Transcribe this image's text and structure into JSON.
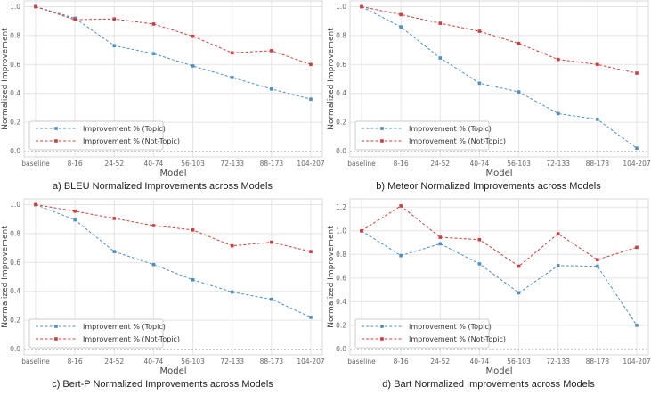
{
  "figure": {
    "background": "#ffffff",
    "grid_color": "#e4e4e4",
    "spine_color": "#d9d9d9",
    "tick_color": "#666666",
    "label_color": "#444444",
    "title_color": "#1f1f1f",
    "zero_line_color": "#c8c8c8",
    "legend_border_color": "#cccccc",
    "topic_color": "#4a8fc7",
    "not_topic_color": "#d63b3b"
  },
  "chart_data": [
    {
      "type": "line",
      "title": "a) BLEU Normalized Improvements across Models",
      "xlabel": "Model",
      "ylabel": "Normalized Improvement",
      "categories": [
        "baseline",
        "8-16",
        "24-52",
        "40-74",
        "56-103",
        "72-133",
        "88-173",
        "104-207"
      ],
      "ylim": [
        -0.04,
        1.04
      ],
      "yticks": [
        0.0,
        0.2,
        0.4,
        0.6,
        0.8,
        1.0
      ],
      "grid": true,
      "legend_position": "lower left",
      "series": [
        {
          "name": "Improvement % (Topic)",
          "color": "#4a8fc7",
          "marker": "square",
          "linestyle": "dashed",
          "values": [
            1.0,
            0.92,
            0.73,
            0.675,
            0.59,
            0.51,
            0.43,
            0.36
          ]
        },
        {
          "name": "Improvement % (Not-Topic)",
          "color": "#d63b3b",
          "marker": "square",
          "linestyle": "dashed",
          "values": [
            1.0,
            0.91,
            0.915,
            0.88,
            0.795,
            0.68,
            0.695,
            0.6
          ]
        }
      ]
    },
    {
      "type": "line",
      "title": "b) Meteor Normalized Improvements across Models",
      "xlabel": "Model",
      "ylabel": "Normalized Improvement",
      "categories": [
        "baseline",
        "8-16",
        "24-52",
        "40-74",
        "56-103",
        "72-133",
        "88-173",
        "104-207"
      ],
      "ylim": [
        -0.04,
        1.04
      ],
      "yticks": [
        0.0,
        0.2,
        0.4,
        0.6,
        0.8,
        1.0
      ],
      "grid": true,
      "legend_position": "lower left",
      "series": [
        {
          "name": "Improvement % (Topic)",
          "color": "#4a8fc7",
          "marker": "square",
          "linestyle": "dashed",
          "values": [
            1.0,
            0.86,
            0.645,
            0.47,
            0.41,
            0.26,
            0.22,
            0.02
          ]
        },
        {
          "name": "Improvement % (Not-Topic)",
          "color": "#d63b3b",
          "marker": "square",
          "linestyle": "dashed",
          "values": [
            1.0,
            0.945,
            0.885,
            0.83,
            0.745,
            0.635,
            0.6,
            0.54
          ]
        }
      ]
    },
    {
      "type": "line",
      "title": "c) Bert-P Normalized Improvements across Models",
      "xlabel": "Model",
      "ylabel": "Normalized Improvement",
      "categories": [
        "baseline",
        "8-16",
        "24-52",
        "40-74",
        "56-103",
        "72-133",
        "88-173",
        "104-207"
      ],
      "ylim": [
        -0.04,
        1.04
      ],
      "yticks": [
        0.0,
        0.2,
        0.4,
        0.6,
        0.8,
        1.0
      ],
      "grid": true,
      "legend_position": "lower left",
      "series": [
        {
          "name": "Improvement % (Topic)",
          "color": "#4a8fc7",
          "marker": "square",
          "linestyle": "dashed",
          "values": [
            1.0,
            0.895,
            0.675,
            0.585,
            0.48,
            0.395,
            0.345,
            0.22
          ]
        },
        {
          "name": "Improvement % (Not-Topic)",
          "color": "#d63b3b",
          "marker": "square",
          "linestyle": "dashed",
          "values": [
            1.0,
            0.955,
            0.905,
            0.855,
            0.825,
            0.715,
            0.74,
            0.675
          ]
        }
      ]
    },
    {
      "type": "line",
      "title": "d) Bart Normalized Improvements across Models",
      "xlabel": "Model",
      "ylabel": "Normalized Improvement",
      "categories": [
        "baseline",
        "8-16",
        "24-52",
        "40-74",
        "56-103",
        "72-133",
        "88-173",
        "104-207"
      ],
      "ylim": [
        -0.05,
        1.27
      ],
      "yticks": [
        0.0,
        0.2,
        0.4,
        0.6,
        0.8,
        1.0,
        1.2
      ],
      "grid": true,
      "legend_position": "lower left",
      "series": [
        {
          "name": "Improvement % (Topic)",
          "color": "#4a8fc7",
          "marker": "square",
          "linestyle": "dashed",
          "values": [
            1.0,
            0.79,
            0.89,
            0.72,
            0.475,
            0.705,
            0.7,
            0.2
          ]
        },
        {
          "name": "Improvement % (Not-Topic)",
          "color": "#d63b3b",
          "marker": "square",
          "linestyle": "dashed",
          "values": [
            1.0,
            1.21,
            0.945,
            0.925,
            0.7,
            0.975,
            0.755,
            0.86
          ]
        }
      ]
    }
  ]
}
